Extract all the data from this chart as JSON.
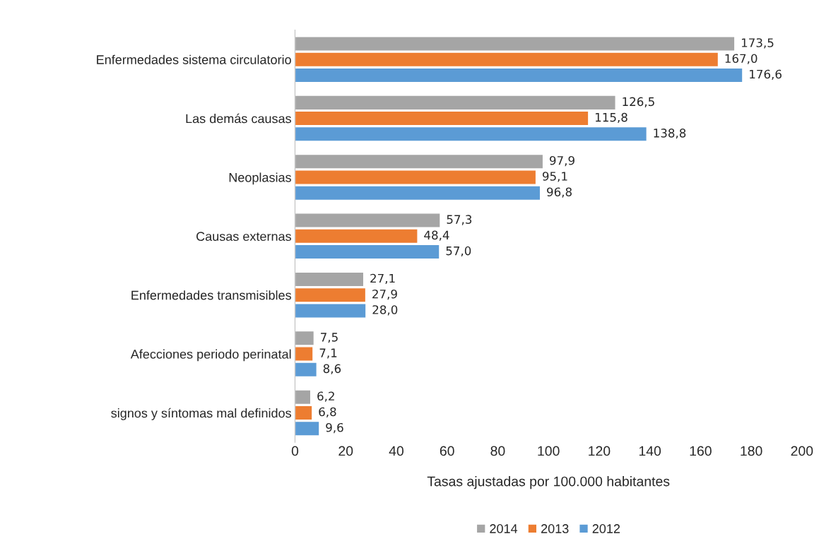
{
  "chart_data": {
    "type": "bar",
    "orientation": "horizontal",
    "xlabel": "Tasas ajustadas por 100.000 habitantes",
    "categories": [
      "Enfermedades sistema circulatorio",
      "Las demás causas",
      "Neoplasias",
      "Causas externas",
      "Enfermedades transmisibles",
      "Afecciones periodo perinatal",
      "signos y síntomas mal definidos"
    ],
    "series": [
      {
        "name": "2014",
        "color": "#a5a5a5",
        "values": [
          173.5,
          126.5,
          97.9,
          57.3,
          27.1,
          7.5,
          6.2
        ],
        "value_labels": [
          "173,5",
          "126,5",
          "97,9",
          "57,3",
          "27,1",
          "7,5",
          "6,2"
        ]
      },
      {
        "name": "2013",
        "color": "#ed7d31",
        "values": [
          167.0,
          115.8,
          95.1,
          48.4,
          27.9,
          7.1,
          6.8
        ],
        "value_labels": [
          "167,0",
          "115,8",
          "95,1",
          "48,4",
          "27,9",
          "7,1",
          "6,8"
        ]
      },
      {
        "name": "2012",
        "color": "#5b9bd5",
        "values": [
          176.6,
          138.8,
          96.8,
          57.0,
          28.0,
          8.6,
          9.6
        ],
        "value_labels": [
          "176,6",
          "138,8",
          "96,8",
          "57,0",
          "28,0",
          "8,6",
          "9,6"
        ]
      }
    ],
    "xlim": [
      0,
      200
    ],
    "xticks": [
      0,
      20,
      40,
      60,
      80,
      100,
      120,
      140,
      160,
      180,
      200
    ],
    "grid": false,
    "legend": "bottom"
  }
}
